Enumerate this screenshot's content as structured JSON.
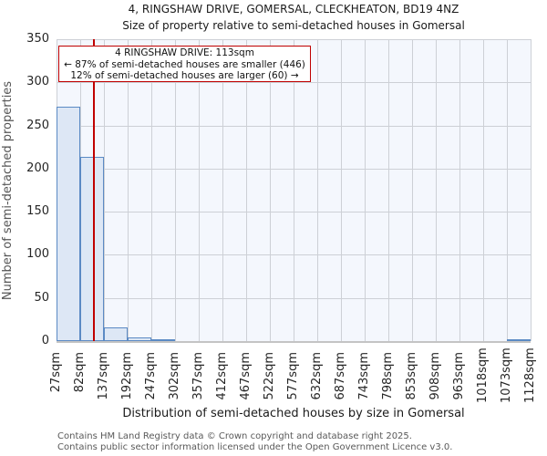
{
  "title": "4, RINGSHAW DRIVE, GOMERSAL, CLECKHEATON, BD19 4NZ",
  "subtitle": "Size of property relative to semi-detached houses in Gomersal",
  "annotation": {
    "line1": "4 RINGSHAW DRIVE: 113sqm",
    "line2": "← 87% of semi-detached houses are smaller (446)",
    "line3": "12% of semi-detached houses are larger (60) →",
    "property_label": "4 RINGSHAW DRIVE",
    "property_size_sqm": 113,
    "pct_smaller": 87,
    "count_smaller": 446,
    "pct_larger": 12,
    "count_larger": 60
  },
  "chart_data": {
    "type": "bar",
    "title": "4, RINGSHAW DRIVE, GOMERSAL, CLECKHEATON, BD19 4NZ",
    "subtitle": "Size of property relative to semi-detached houses in Gomersal",
    "xlabel": "Distribution of semi-detached houses by size in Gomersal",
    "ylabel": "Number of semi-detached properties",
    "bin_edges_sqm": [
      27,
      82,
      137,
      192,
      247,
      302,
      357,
      412,
      467,
      522,
      577,
      632,
      687,
      743,
      798,
      853,
      908,
      963,
      1018,
      1073,
      1128
    ],
    "x_tick_labels": [
      "27sqm",
      "82sqm",
      "137sqm",
      "192sqm",
      "247sqm",
      "302sqm",
      "357sqm",
      "412sqm",
      "467sqm",
      "522sqm",
      "577sqm",
      "632sqm",
      "687sqm",
      "743sqm",
      "798sqm",
      "853sqm",
      "908sqm",
      "963sqm",
      "1018sqm",
      "1073sqm",
      "1128sqm"
    ],
    "values": [
      272,
      214,
      16,
      4,
      1,
      0,
      0,
      0,
      0,
      0,
      0,
      0,
      0,
      0,
      0,
      0,
      0,
      0,
      0,
      1
    ],
    "y_ticks": [
      0,
      50,
      100,
      150,
      200,
      250,
      300,
      350
    ],
    "ylim": [
      0,
      350
    ],
    "grid": true,
    "marker_value_sqm": 113,
    "colors": {
      "bar_fill": "#dde7f5",
      "bar_edge": "#5b8ac4",
      "marker_line": "#c00000",
      "grid": "#cdd0d6",
      "plot_bg": "#f4f7fd",
      "annotation_border": "#c00000"
    }
  },
  "footer": {
    "line1": "Contains HM Land Registry data © Crown copyright and database right 2025.",
    "line2": "Contains public sector information licensed under the Open Government Licence v3.0."
  }
}
